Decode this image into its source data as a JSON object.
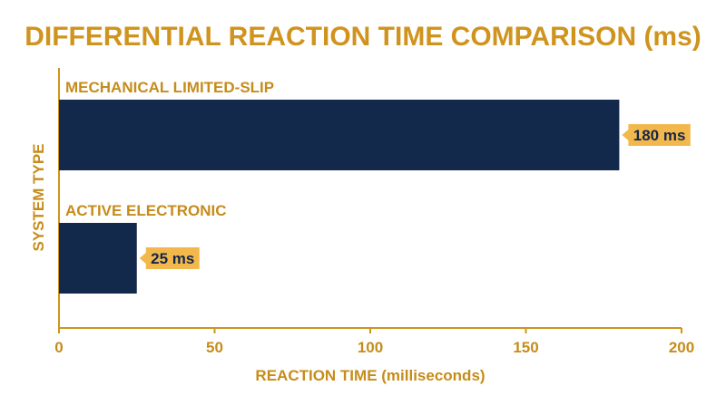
{
  "chart_data": {
    "type": "bar",
    "orientation": "horizontal",
    "title": "DIFFERENTIAL REACTION TIME COMPARISON (ms)",
    "xlabel": "REACTION TIME (milliseconds)",
    "ylabel": "SYSTEM TYPE",
    "categories": [
      "MECHANICAL LIMITED-SLIP",
      "ACTIVE ELECTRONIC"
    ],
    "values": [
      180,
      25
    ],
    "value_labels": [
      "180 ms",
      "25 ms"
    ],
    "xlim": [
      0,
      200
    ],
    "xticks": [
      0,
      50,
      100,
      150,
      200
    ],
    "grid": false,
    "legend": "none",
    "colors": {
      "bar": "#13294b",
      "accent": "#d0941e",
      "label_bg": "#f2b84b",
      "label_text": "#14264a"
    }
  }
}
